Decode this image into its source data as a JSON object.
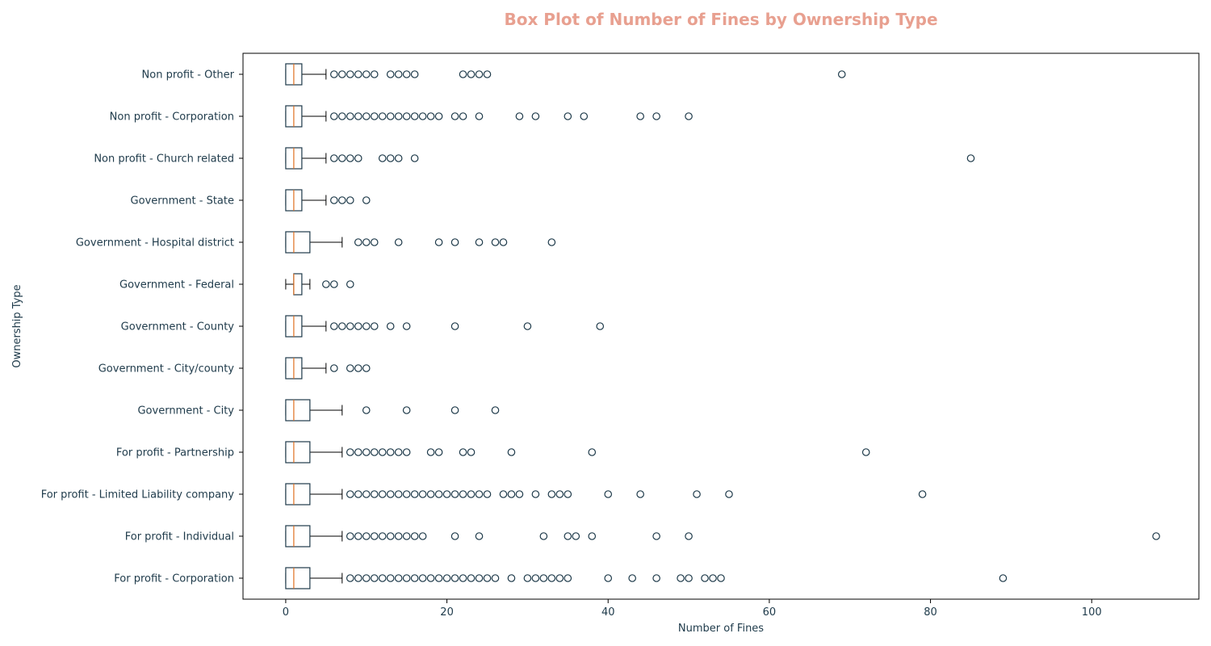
{
  "colors": {
    "title": "#e8a090",
    "text": "#1e3a4a",
    "box": "#1e3a4a",
    "median": "#e07020",
    "background": "#ffffff"
  },
  "chart_data": {
    "type": "boxplot",
    "orientation": "horizontal",
    "title": "Box Plot of Number of Fines by Ownership Type",
    "xlabel": "Number of Fines",
    "ylabel": "Ownership Type",
    "xlim": [
      -5.3,
      113.3
    ],
    "xticks": [
      0,
      20,
      40,
      60,
      80,
      100
    ],
    "grid": false,
    "categories": [
      "For profit - Corporation",
      "For profit - Individual",
      "For profit - Limited Liability company",
      "For profit - Partnership",
      "Government - City",
      "Government - City/county",
      "Government - County",
      "Government - Federal",
      "Government - Hospital district",
      "Government - State",
      "Non profit - Church related",
      "Non profit - Corporation",
      "Non profit - Other"
    ],
    "boxes": [
      {
        "whisker_low": 0,
        "q1": 0,
        "median": 1,
        "q3": 3,
        "whisker_high": 7,
        "outliers": [
          8,
          9,
          10,
          11,
          12,
          13,
          14,
          15,
          16,
          17,
          18,
          19,
          20,
          21,
          22,
          23,
          24,
          25,
          26,
          28,
          30,
          31,
          32,
          33,
          34,
          35,
          40,
          43,
          46,
          49,
          50,
          52,
          53,
          54,
          89
        ]
      },
      {
        "whisker_low": 0,
        "q1": 0,
        "median": 1,
        "q3": 3,
        "whisker_high": 7,
        "outliers": [
          8,
          9,
          10,
          11,
          12,
          13,
          14,
          15,
          16,
          17,
          21,
          24,
          32,
          35,
          36,
          38,
          46,
          50,
          108
        ]
      },
      {
        "whisker_low": 0,
        "q1": 0,
        "median": 1,
        "q3": 3,
        "whisker_high": 7,
        "outliers": [
          8,
          9,
          10,
          11,
          12,
          13,
          14,
          15,
          16,
          17,
          18,
          19,
          20,
          21,
          22,
          23,
          24,
          25,
          27,
          28,
          29,
          31,
          33,
          34,
          35,
          40,
          44,
          51,
          55,
          79
        ]
      },
      {
        "whisker_low": 0,
        "q1": 0,
        "median": 1,
        "q3": 3,
        "whisker_high": 7,
        "outliers": [
          8,
          9,
          10,
          11,
          12,
          13,
          14,
          15,
          18,
          19,
          22,
          23,
          28,
          38,
          72
        ]
      },
      {
        "whisker_low": 0,
        "q1": 0,
        "median": 1,
        "q3": 3,
        "whisker_high": 7,
        "outliers": [
          10,
          15,
          21,
          26
        ]
      },
      {
        "whisker_low": 0,
        "q1": 0,
        "median": 1,
        "q3": 2,
        "whisker_high": 5,
        "outliers": [
          6,
          8,
          9,
          10
        ]
      },
      {
        "whisker_low": 0,
        "q1": 0,
        "median": 1,
        "q3": 2,
        "whisker_high": 5,
        "outliers": [
          6,
          7,
          8,
          9,
          10,
          11,
          13,
          15,
          21,
          30,
          39
        ]
      },
      {
        "whisker_low": 0,
        "q1": 1,
        "median": 1,
        "q3": 2,
        "whisker_high": 3,
        "outliers": [
          5,
          6,
          8
        ]
      },
      {
        "whisker_low": 0,
        "q1": 0,
        "median": 1,
        "q3": 3,
        "whisker_high": 7,
        "outliers": [
          9,
          10,
          11,
          14,
          19,
          21,
          24,
          26,
          27,
          33
        ]
      },
      {
        "whisker_low": 0,
        "q1": 0,
        "median": 1,
        "q3": 2,
        "whisker_high": 5,
        "outliers": [
          6,
          7,
          8,
          10
        ]
      },
      {
        "whisker_low": 0,
        "q1": 0,
        "median": 1,
        "q3": 2,
        "whisker_high": 5,
        "outliers": [
          6,
          7,
          8,
          9,
          12,
          13,
          14,
          16,
          85
        ]
      },
      {
        "whisker_low": 0,
        "q1": 0,
        "median": 1,
        "q3": 2,
        "whisker_high": 5,
        "outliers": [
          6,
          7,
          8,
          9,
          10,
          11,
          12,
          13,
          14,
          15,
          16,
          17,
          18,
          19,
          21,
          22,
          24,
          29,
          31,
          35,
          37,
          44,
          46,
          50
        ]
      },
      {
        "whisker_low": 0,
        "q1": 0,
        "median": 1,
        "q3": 2,
        "whisker_high": 5,
        "outliers": [
          6,
          7,
          8,
          9,
          10,
          11,
          13,
          14,
          15,
          16,
          22,
          23,
          24,
          25,
          69
        ]
      }
    ]
  }
}
